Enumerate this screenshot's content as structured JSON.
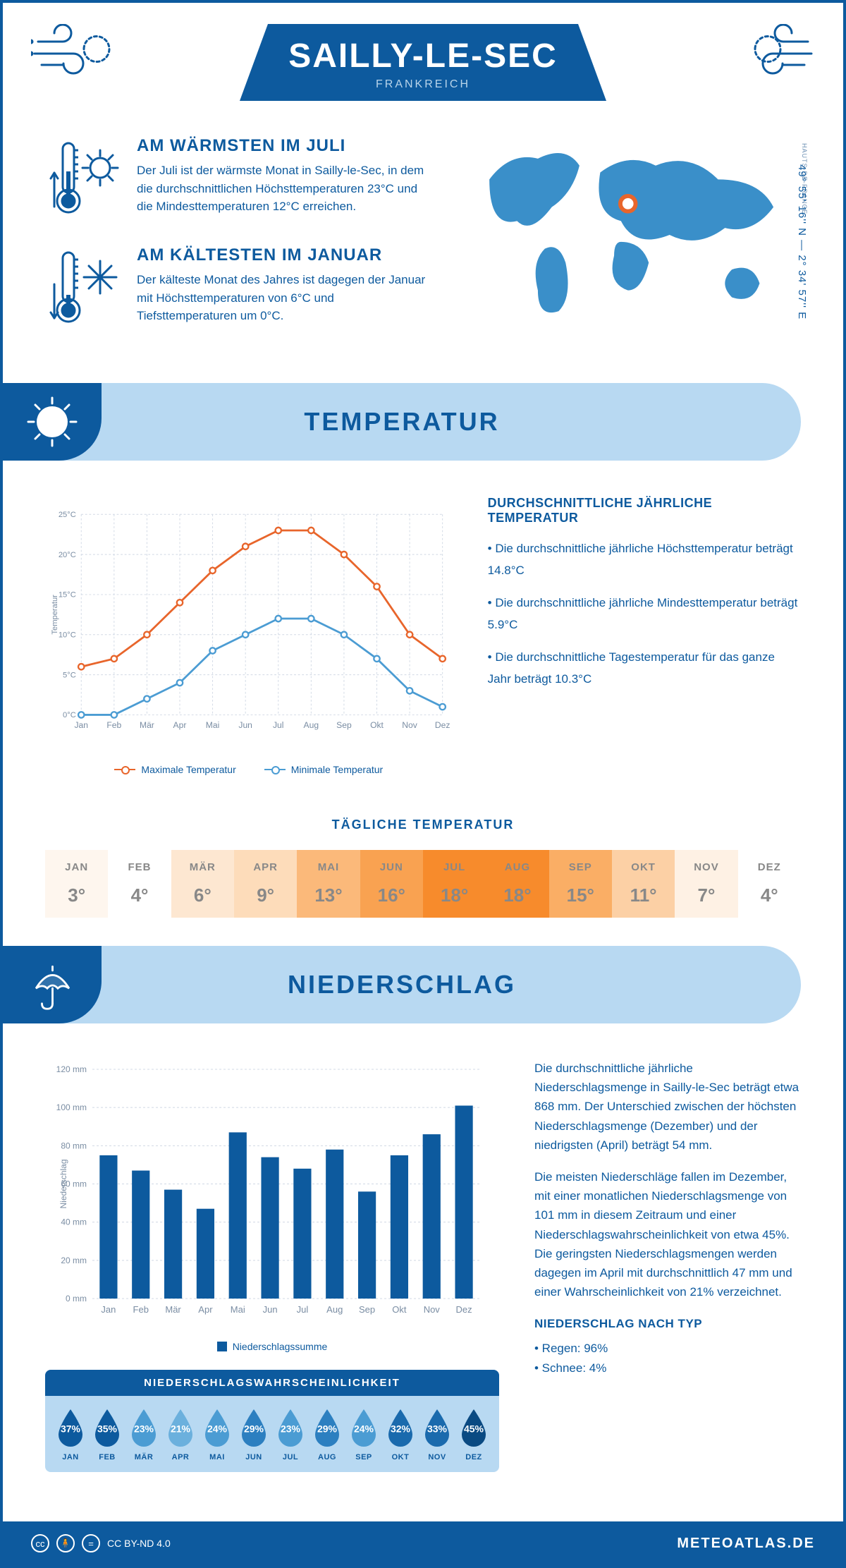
{
  "header": {
    "title": "SAILLY-LE-SEC",
    "country": "FRANKREICH"
  },
  "coordinates": "49° 55' 16'' N — 2° 34' 57'' E",
  "region": "HAUTS-DE-FRANCE",
  "colors": {
    "primary": "#0d5a9e",
    "light": "#b8d9f2",
    "orange": "#e8652b",
    "blue_line": "#4b9cd3",
    "sky": "#3a8fc9"
  },
  "warmest": {
    "title": "AM WÄRMSTEN IM JULI",
    "text": "Der Juli ist der wärmste Monat in Sailly-le-Sec, in dem die durchschnittlichen Höchsttemperaturen 23°C und die Mindesttemperaturen 12°C erreichen."
  },
  "coldest": {
    "title": "AM KÄLTESTEN IM JANUAR",
    "text": "Der kälteste Monat des Jahres ist dagegen der Januar mit Höchsttemperaturen von 6°C und Tiefsttemperaturen um 0°C."
  },
  "temp_section": {
    "heading": "TEMPERATUR",
    "chart": {
      "months": [
        "Jan",
        "Feb",
        "Mär",
        "Apr",
        "Mai",
        "Jun",
        "Jul",
        "Aug",
        "Sep",
        "Okt",
        "Nov",
        "Dez"
      ],
      "max": [
        6,
        7,
        10,
        14,
        18,
        21,
        23,
        23,
        20,
        16,
        10,
        7
      ],
      "min": [
        0,
        0,
        2,
        4,
        8,
        10,
        12,
        12,
        10,
        7,
        3,
        1
      ],
      "ylim": [
        0,
        25
      ],
      "ystep": 5,
      "ylabel": "Temperatur",
      "max_color": "#e8652b",
      "min_color": "#4b9cd3",
      "grid_color": "#d0d8e4",
      "line_width": 3
    },
    "legend": {
      "max": "Maximale Temperatur",
      "min": "Minimale Temperatur"
    },
    "desc_title": "DURCHSCHNITTLICHE JÄHRLICHE TEMPERATUR",
    "bullets": [
      "• Die durchschnittliche jährliche Höchsttemperatur beträgt 14.8°C",
      "• Die durchschnittliche jährliche Mindesttemperatur beträgt 5.9°C",
      "• Die durchschnittliche Tagestemperatur für das ganze Jahr beträgt 10.3°C"
    ]
  },
  "daily_temp": {
    "title": "TÄGLICHE TEMPERATUR",
    "months": [
      "JAN",
      "FEB",
      "MÄR",
      "APR",
      "MAI",
      "JUN",
      "JUL",
      "AUG",
      "SEP",
      "OKT",
      "NOV",
      "DEZ"
    ],
    "values": [
      "3°",
      "4°",
      "6°",
      "9°",
      "13°",
      "16°",
      "18°",
      "18°",
      "15°",
      "11°",
      "7°",
      "4°"
    ],
    "bg_colors": [
      "#fef6ee",
      "#ffffff",
      "#fde7d1",
      "#fddcba",
      "#fbb97a",
      "#f9a251",
      "#f78b2c",
      "#f78b2c",
      "#faae65",
      "#fcd0a5",
      "#fef1e4",
      "#ffffff"
    ]
  },
  "precip_section": {
    "heading": "NIEDERSCHLAG",
    "chart": {
      "months": [
        "Jan",
        "Feb",
        "Mär",
        "Apr",
        "Mai",
        "Jun",
        "Jul",
        "Aug",
        "Sep",
        "Okt",
        "Nov",
        "Dez"
      ],
      "values": [
        75,
        67,
        57,
        47,
        87,
        74,
        68,
        78,
        56,
        75,
        86,
        101
      ],
      "ylim": [
        0,
        120
      ],
      "ystep": 20,
      "ylabel": "Niederschlag",
      "bar_color": "#0d5a9e",
      "grid_color": "#d0d8e4",
      "bar_width": 0.55,
      "legend": "Niederschlagssumme"
    },
    "body1": "Die durchschnittliche jährliche Niederschlagsmenge in Sailly-le-Sec beträgt etwa 868 mm. Der Unterschied zwischen der höchsten Niederschlagsmenge (Dezember) und der niedrigsten (April) beträgt 54 mm.",
    "body2": "Die meisten Niederschläge fallen im Dezember, mit einer monatlichen Niederschlagsmenge von 101 mm in diesem Zeitraum und einer Niederschlagswahrscheinlichkeit von etwa 45%. Die geringsten Niederschlagsmengen werden dagegen im April mit durchschnittlich 47 mm und einer Wahrscheinlichkeit von 21% verzeichnet.",
    "type_title": "NIEDERSCHLAG NACH TYP",
    "types": [
      "• Regen: 96%",
      "• Schnee: 4%"
    ]
  },
  "probability": {
    "title": "NIEDERSCHLAGSWAHRSCHEINLICHKEIT",
    "months": [
      "JAN",
      "FEB",
      "MÄR",
      "APR",
      "MAI",
      "JUN",
      "JUL",
      "AUG",
      "SEP",
      "OKT",
      "NOV",
      "DEZ"
    ],
    "values": [
      "37%",
      "35%",
      "23%",
      "21%",
      "24%",
      "29%",
      "23%",
      "29%",
      "24%",
      "32%",
      "33%",
      "45%"
    ],
    "colors": [
      "#0d5a9e",
      "#0d5a9e",
      "#4b9cd3",
      "#6bb0dd",
      "#4b9cd3",
      "#2c7fc0",
      "#4b9cd3",
      "#2c7fc0",
      "#4b9cd3",
      "#1a6aad",
      "#1a6aad",
      "#0a4a82"
    ]
  },
  "footer": {
    "license": "CC BY-ND 4.0",
    "brand": "METEOATLAS.DE"
  }
}
